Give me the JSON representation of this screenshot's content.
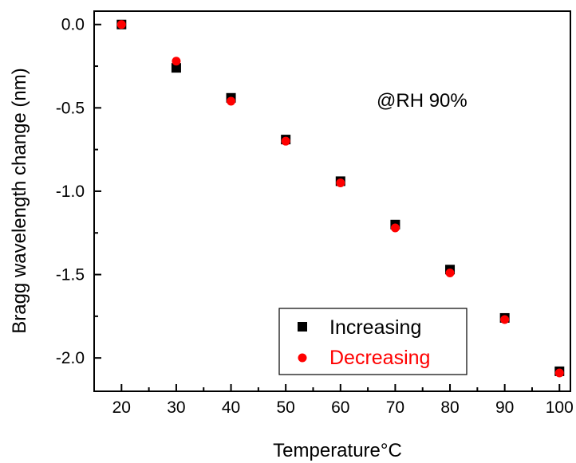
{
  "chart_data": {
    "type": "scatter",
    "title": "",
    "xlabel": "Temperature°C",
    "ylabel": "Bragg wavelength change (nm)",
    "xlim": [
      15,
      102
    ],
    "ylim": [
      -2.2,
      0.08
    ],
    "x_ticks": [
      20,
      30,
      40,
      50,
      60,
      70,
      80,
      90,
      100
    ],
    "x_tick_labels": [
      "20",
      "30",
      "40",
      "50",
      "60",
      "70",
      "80",
      "90",
      "100"
    ],
    "y_ticks": [
      0.0,
      -0.5,
      -1.0,
      -1.5,
      -2.0
    ],
    "y_tick_labels": [
      "0.0",
      "-0.5",
      "-1.0",
      "-1.5",
      "-2.0"
    ],
    "annotation": "@RH 90%",
    "grid": false,
    "legend_position": "bottom-right",
    "x": [
      20,
      30,
      40,
      50,
      60,
      70,
      80,
      90,
      100
    ],
    "series": [
      {
        "name": "Increasing",
        "marker": "square",
        "color": "#000000",
        "values": [
          0.0,
          -0.26,
          -0.44,
          -0.69,
          -0.94,
          -1.2,
          -1.47,
          -1.76,
          -2.08
        ]
      },
      {
        "name": "Decreasing",
        "marker": "circle",
        "color": "#ff0000",
        "values": [
          0.0,
          -0.22,
          -0.46,
          -0.7,
          -0.95,
          -1.22,
          -1.49,
          -1.77,
          -2.09
        ]
      }
    ]
  }
}
